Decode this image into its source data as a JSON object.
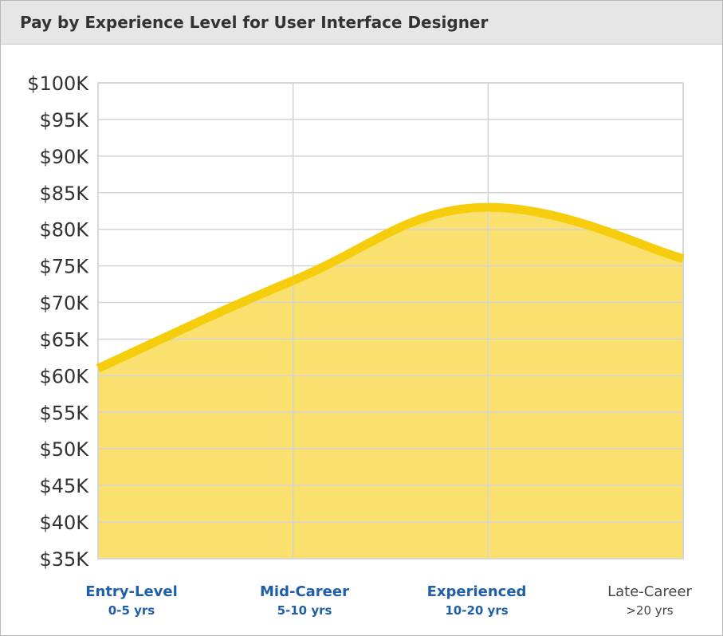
{
  "header": {
    "title": "Pay by Experience Level for User Interface Designer"
  },
  "colors": {
    "line": "#f5cd0c",
    "area": "#fae16f",
    "grid": "#d3d3d3",
    "label_highlight": "#1f5fa8",
    "label_plain": "#444444"
  },
  "chart_data": {
    "type": "area",
    "title": "Pay by Experience Level for User Interface Designer",
    "xlabel": "",
    "ylabel": "",
    "ylim": [
      35000,
      100000
    ],
    "y_ticks": [
      {
        "value": 100000,
        "label": "$100K"
      },
      {
        "value": 95000,
        "label": "$95K"
      },
      {
        "value": 90000,
        "label": "$90K"
      },
      {
        "value": 85000,
        "label": "$85K"
      },
      {
        "value": 80000,
        "label": "$80K"
      },
      {
        "value": 75000,
        "label": "$75K"
      },
      {
        "value": 70000,
        "label": "$70K"
      },
      {
        "value": 65000,
        "label": "$65K"
      },
      {
        "value": 60000,
        "label": "$60K"
      },
      {
        "value": 55000,
        "label": "$55K"
      },
      {
        "value": 50000,
        "label": "$50K"
      },
      {
        "value": 45000,
        "label": "$45K"
      },
      {
        "value": 40000,
        "label": "$40K"
      },
      {
        "value": 35000,
        "label": "$35K"
      }
    ],
    "categories": [
      {
        "label": "Entry-Level",
        "sub": "0-5 yrs",
        "highlight": true
      },
      {
        "label": "Mid-Career",
        "sub": "5-10 yrs",
        "highlight": true
      },
      {
        "label": "Experienced",
        "sub": "10-20 yrs",
        "highlight": true
      },
      {
        "label": "Late-Career",
        "sub": ">20 yrs",
        "highlight": false
      }
    ],
    "values": [
      61000,
      73000,
      83000,
      76000
    ],
    "grid": true,
    "legend": "none"
  }
}
